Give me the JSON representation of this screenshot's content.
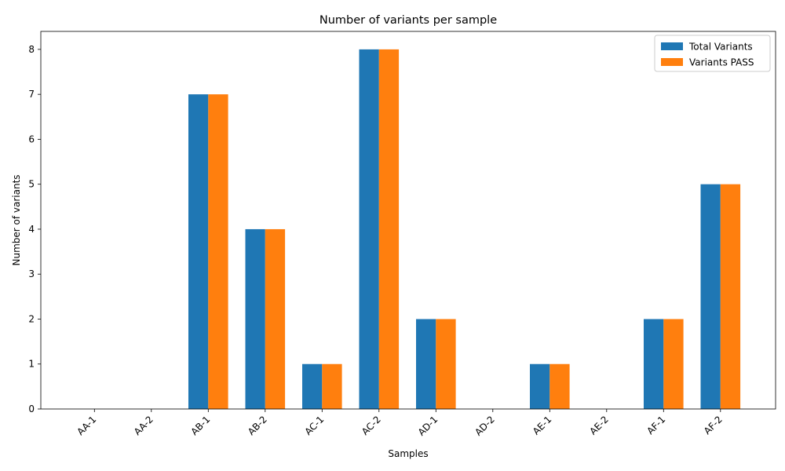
{
  "chart_data": {
    "type": "bar",
    "title": "Number of variants per sample",
    "xlabel": "Samples",
    "ylabel": "Number of variants",
    "categories": [
      "AA-1",
      "AA-2",
      "AB-1",
      "AB-2",
      "AC-1",
      "AC-2",
      "AD-1",
      "AD-2",
      "AE-1",
      "AE-2",
      "AF-1",
      "AF-2"
    ],
    "series": [
      {
        "name": "Total Variants",
        "color": "#1f77b4",
        "values": [
          0,
          0,
          7,
          4,
          1,
          8,
          2,
          0,
          1,
          0,
          2,
          5
        ]
      },
      {
        "name": "Variants PASS",
        "color": "#ff7f0e",
        "values": [
          0,
          0,
          7,
          4,
          1,
          8,
          2,
          0,
          1,
          0,
          2,
          5
        ]
      }
    ],
    "ylim": [
      0,
      8.4
    ],
    "yticks": [
      0,
      1,
      2,
      3,
      4,
      5,
      6,
      7,
      8
    ],
    "grid": false,
    "legend": "top-right"
  }
}
